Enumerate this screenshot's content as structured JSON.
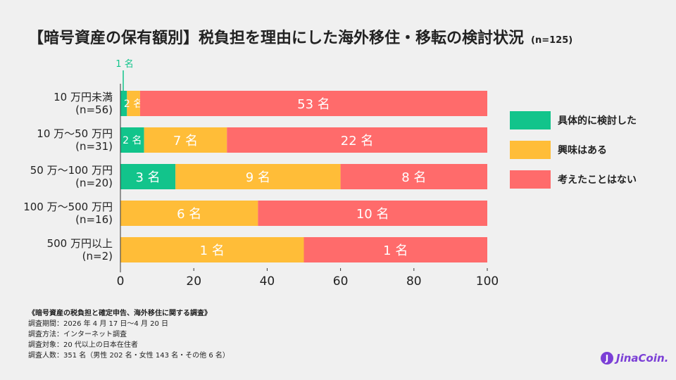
{
  "title": "【暗号資産の保有額別】税負担を理由にした海外移住・移転の検討状況",
  "sample": "(n=125)",
  "legend": {
    "items": [
      {
        "label": "具体的に検討した",
        "color": "#12c48b"
      },
      {
        "label": "興味はある",
        "color": "#ffbd38"
      },
      {
        "label": "考えたことはない",
        "color": "#ff6b6b"
      }
    ]
  },
  "chart_data": {
    "type": "bar",
    "orientation": "horizontal",
    "stacked": true,
    "percent_scale": true,
    "xlim": [
      0,
      100
    ],
    "xticks": [
      "0",
      "20",
      "40",
      "60",
      "80",
      "100"
    ],
    "categories": [
      [
        "10 万円未満",
        "(n=56)"
      ],
      [
        "10 万～50 万円",
        "(n=31)"
      ],
      [
        "50 万～100 万円",
        "(n=20)"
      ],
      [
        "100 万～500 万円",
        "(n=16)"
      ],
      [
        "500 万円以上",
        "(n=2)"
      ]
    ],
    "totals": [
      56,
      31,
      20,
      16,
      2
    ],
    "series": [
      {
        "name": "具体的に検討した",
        "color": "#12c48b",
        "counts": [
          1,
          2,
          3,
          0,
          0
        ],
        "labels": [
          "1 名",
          "2 名",
          "3 名",
          "",
          ""
        ]
      },
      {
        "name": "興味はある",
        "color": "#ffbd38",
        "counts": [
          2,
          7,
          9,
          6,
          1
        ],
        "labels": [
          "2 名",
          "7 名",
          "9 名",
          "6 名",
          "1 名"
        ]
      },
      {
        "name": "考えたことはない",
        "color": "#ff6b6b",
        "counts": [
          53,
          22,
          8,
          10,
          1
        ],
        "labels": [
          "53 名",
          "22 名",
          "8 名",
          "10 名",
          "1 名"
        ]
      }
    ]
  },
  "notes": {
    "heading": "《暗号資産の税負担と確定申告、海外移住に関する調査》",
    "lines": [
      "調査期間：2026 年 4 月 17 日～4 月 20 日",
      "調査方法：インターネット調査",
      "調査対象：20 代以上の日本在住者",
      "調査人数：351 名（男性 202 名・女性 143 名・その他 6 名）"
    ]
  },
  "logo": {
    "mark": "J",
    "text": "JinaCoin."
  }
}
